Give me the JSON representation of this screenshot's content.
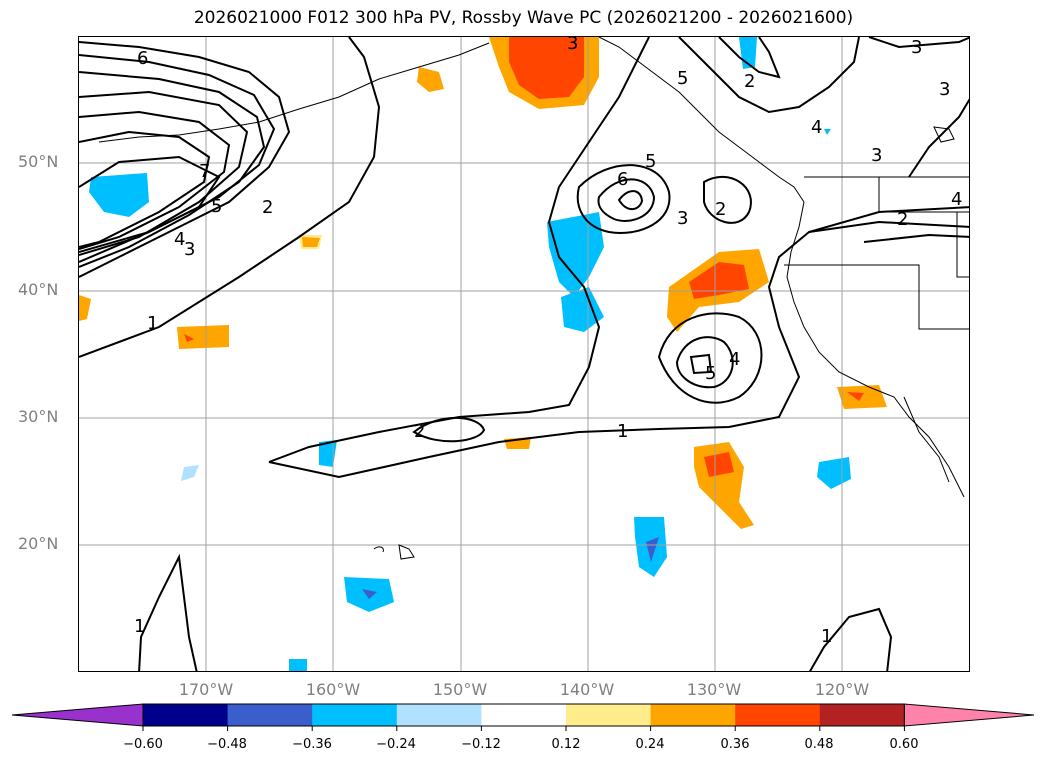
{
  "title": "2026021000 F012 300 hPa PV, Rossby Wave PC (2026021200 - 2026021600)",
  "lat_labels": [
    "50°N",
    "40°N",
    "30°N",
    "20°N"
  ],
  "lon_labels": [
    "170°W",
    "160°W",
    "150°W",
    "140°W",
    "130°W",
    "120°W"
  ],
  "colorbar": {
    "ticks": [
      "−0.60",
      "−0.48",
      "−0.36",
      "−0.24",
      "−0.12",
      "0.12",
      "0.24",
      "0.36",
      "0.48",
      "0.60"
    ],
    "colors": [
      "#9932CC",
      "#00008B",
      "#3A5FCD",
      "#00BFFF",
      "#B0E2FF",
      "#FFFFFF",
      "#FFEC8B",
      "#FFA500",
      "#FF4500",
      "#B22222",
      "#FF82AB"
    ]
  },
  "contour_labels": [
    "6",
    "7",
    "5",
    "4",
    "3",
    "2",
    "1",
    "3",
    "2",
    "6",
    "5",
    "3",
    "2",
    "4",
    "5",
    "2",
    "1",
    "1",
    "1",
    "3",
    "4",
    "5",
    "2",
    "4",
    "3",
    "3"
  ],
  "chart_data": {
    "type": "map",
    "title": "2026021000 F012 300 hPa PV, Rossby Wave PC (2026021200 - 2026021600)",
    "lat_ticks": [
      "50°N",
      "40°N",
      "30°N",
      "20°N"
    ],
    "lon_ticks": [
      "170°W",
      "160°W",
      "150°W",
      "140°W",
      "130°W",
      "120°W"
    ],
    "shading_levels": [
      -0.6,
      -0.48,
      -0.36,
      -0.24,
      -0.12,
      0.12,
      0.24,
      0.36,
      0.48,
      0.6
    ],
    "contour_levels": [
      1,
      2,
      3,
      4,
      5,
      6,
      7
    ],
    "grid": true,
    "colorbar": "bottom, extend both"
  }
}
